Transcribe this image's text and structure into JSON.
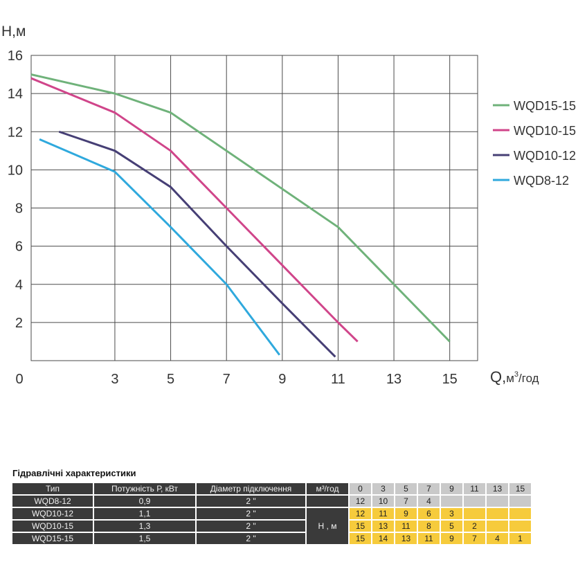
{
  "chart_data": {
    "type": "line",
    "ylabel": "H,м",
    "xlabel": "Q,м³/год",
    "xlabel_main": "Q,",
    "xlabel_unit": "м",
    "xlabel_sup": "3",
    "xlabel_tail": "/год",
    "xlim": [
      0,
      16
    ],
    "ylim": [
      0,
      16
    ],
    "x_ticks": [
      0,
      3,
      5,
      7,
      9,
      11,
      13,
      15
    ],
    "y_ticks": [
      2,
      4,
      6,
      8,
      10,
      12,
      14,
      16
    ],
    "grid": true,
    "legend_position": "right",
    "series": [
      {
        "name": "WQD15-15",
        "color": "#6fb27a",
        "x": [
          0,
          3,
          5,
          7,
          9,
          11,
          13,
          15
        ],
        "y": [
          15,
          14,
          13,
          11,
          9,
          7,
          4,
          1
        ]
      },
      {
        "name": "WQD10-15",
        "color": "#d0458a",
        "x": [
          0,
          3,
          5,
          7,
          9,
          11,
          11.7
        ],
        "y": [
          14.8,
          13,
          11,
          8,
          5,
          2,
          1
        ]
      },
      {
        "name": "WQD10-12",
        "color": "#463f75",
        "x": [
          1,
          3,
          5,
          7,
          9,
          10.9
        ],
        "y": [
          12,
          11,
          9.1,
          6,
          3,
          0.2
        ]
      },
      {
        "name": "WQD8-12",
        "color": "#2fa9dd",
        "x": [
          0.3,
          3,
          5,
          7,
          8.9
        ],
        "y": [
          11.6,
          9.9,
          7,
          4,
          0.3
        ]
      }
    ]
  },
  "table": {
    "title": "Гідравлічні характеристики",
    "headers": {
      "type": "Тип",
      "power": "Потужність Р, кВт",
      "diameter": "Діаметр підключення",
      "flow": "м³/год",
      "head": "Н , м"
    },
    "flow_values": [
      "0",
      "3",
      "5",
      "7",
      "9",
      "11",
      "13",
      "15"
    ],
    "rows": [
      {
        "type": "WQD8-12",
        "power": "0,9",
        "diameter": "2 \"",
        "heads": [
          "12",
          "10",
          "7",
          "4",
          "",
          "",
          "",
          ""
        ],
        "color": "gray"
      },
      {
        "type": "WQD10-12",
        "power": "1,1",
        "diameter": "2 \"",
        "heads": [
          "12",
          "11",
          "9",
          "6",
          "3",
          "",
          "",
          ""
        ],
        "color": "yellow"
      },
      {
        "type": "WQD10-15",
        "power": "1,3",
        "diameter": "2 \"",
        "heads": [
          "15",
          "13",
          "11",
          "8",
          "5",
          "2",
          "",
          ""
        ],
        "color": "yellow"
      },
      {
        "type": "WQD15-15",
        "power": "1,5",
        "diameter": "2 \"",
        "heads": [
          "15",
          "14",
          "13",
          "11",
          "9",
          "7",
          "4",
          "1"
        ],
        "color": "yellow"
      }
    ]
  }
}
